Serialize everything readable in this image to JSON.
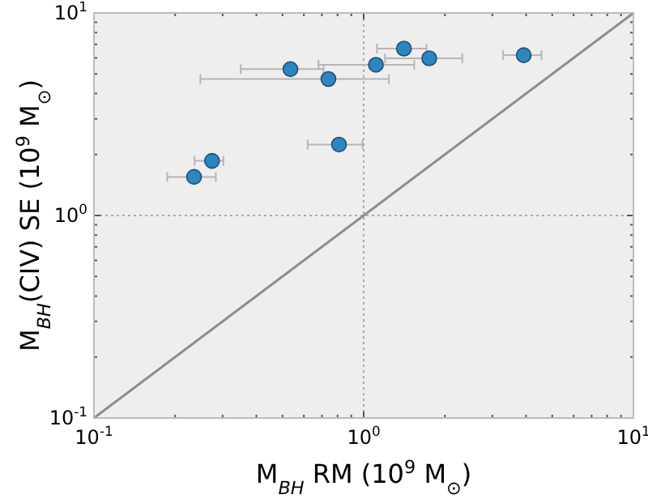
{
  "chart_data": {
    "type": "scatter",
    "xlabel": "M$_{BH}$ RM (10$^{9}$ M$_{⊙}$)",
    "ylabel": "M$_{BH}$(CIV) SE (10$^{9}$ M$_{⊙}$)",
    "log": "xy",
    "grid": true,
    "xlim": [
      0.1,
      10
    ],
    "ylim": [
      0.1,
      10
    ],
    "xticks": [
      {
        "value": 0.1,
        "label": "10$^{-1}$"
      },
      {
        "value": 0.2,
        "label": null
      },
      {
        "value": 0.3,
        "label": null
      },
      {
        "value": 0.4,
        "label": null
      },
      {
        "value": 0.5,
        "label": null
      },
      {
        "value": 0.6,
        "label": null
      },
      {
        "value": 0.7,
        "label": null
      },
      {
        "value": 0.8,
        "label": null
      },
      {
        "value": 0.9,
        "label": null
      },
      {
        "value": 1,
        "label": "10$^{0}$"
      },
      {
        "value": 2,
        "label": null
      },
      {
        "value": 3,
        "label": null
      },
      {
        "value": 4,
        "label": null
      },
      {
        "value": 5,
        "label": null
      },
      {
        "value": 6,
        "label": null
      },
      {
        "value": 7,
        "label": null
      },
      {
        "value": 8,
        "label": null
      },
      {
        "value": 9,
        "label": null
      },
      {
        "value": 10,
        "label": "10$^{1}$"
      }
    ],
    "yticks": [
      {
        "value": 0.1,
        "label": "10$^{-1}$"
      },
      {
        "value": 0.2,
        "label": null
      },
      {
        "value": 0.3,
        "label": null
      },
      {
        "value": 0.4,
        "label": null
      },
      {
        "value": 0.5,
        "label": null
      },
      {
        "value": 0.6,
        "label": null
      },
      {
        "value": 0.7,
        "label": null
      },
      {
        "value": 0.8,
        "label": null
      },
      {
        "value": 0.9,
        "label": null
      },
      {
        "value": 1,
        "label": "10$^{0}$"
      },
      {
        "value": 2,
        "label": null
      },
      {
        "value": 3,
        "label": null
      },
      {
        "value": 4,
        "label": null
      },
      {
        "value": 5,
        "label": null
      },
      {
        "value": 6,
        "label": null
      },
      {
        "value": 7,
        "label": null
      },
      {
        "value": 8,
        "label": null
      },
      {
        "value": 9,
        "label": null
      },
      {
        "value": 10,
        "label": "10$^{1}$"
      }
    ],
    "series": [
      {
        "type": "line",
        "color": "#8c8c8c",
        "x": [
          0.1,
          10
        ],
        "values": [
          0.1,
          10
        ],
        "marker": "none",
        "line_style": "solid"
      },
      {
        "marker": "circle",
        "color": "#2e86c1",
        "x": [
          1.41,
          1.75,
          3.92,
          1.11,
          0.535,
          0.74,
          0.81,
          0.274,
          0.235
        ],
        "values": [
          6.67,
          5.97,
          6.19,
          5.55,
          5.28,
          4.72,
          2.24,
          1.86,
          1.55
        ],
        "xerrors": [
          [
            1.12,
            1.71
          ],
          [
            1.2,
            2.32
          ],
          [
            3.29,
            4.56
          ],
          [
            0.68,
            1.54
          ],
          [
            0.35,
            0.71
          ],
          [
            0.248,
            1.24
          ],
          [
            0.62,
            0.99
          ],
          [
            0.236,
            0.302
          ],
          [
            0.187,
            0.283
          ]
        ]
      }
    ]
  }
}
